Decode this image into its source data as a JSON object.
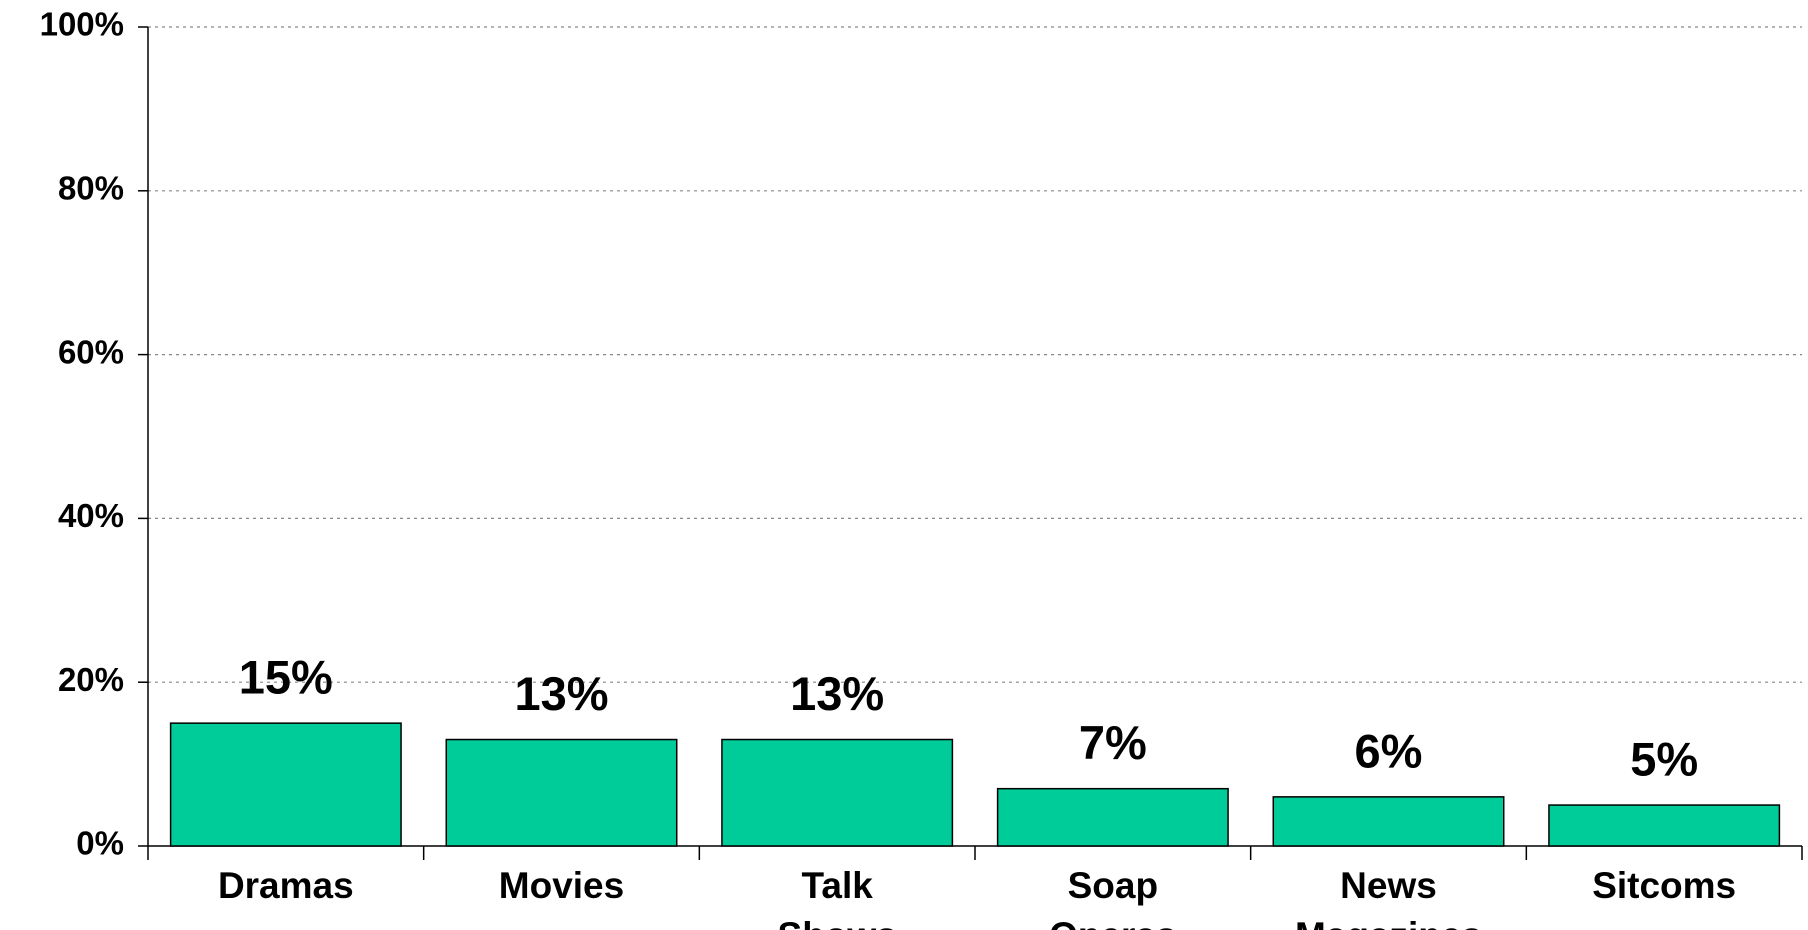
{
  "chart_data": {
    "type": "bar",
    "categories": [
      "Dramas",
      "Movies",
      "Talk Shows",
      "Soap Operas",
      "News Magazines",
      "Sitcoms"
    ],
    "values": [
      15,
      13,
      13,
      7,
      6,
      5
    ],
    "value_labels": [
      "15%",
      "13%",
      "13%",
      "7%",
      "6%",
      "5%"
    ],
    "color": "#00cc99",
    "ylim": [
      0,
      100
    ],
    "yticks": [
      {
        "value": 0,
        "label": "0%"
      },
      {
        "value": 20,
        "label": "20%"
      },
      {
        "value": 40,
        "label": "40%"
      },
      {
        "value": 60,
        "label": "60%"
      },
      {
        "value": 80,
        "label": "80%"
      },
      {
        "value": 100,
        "label": "100%"
      }
    ],
    "grid": true
  }
}
